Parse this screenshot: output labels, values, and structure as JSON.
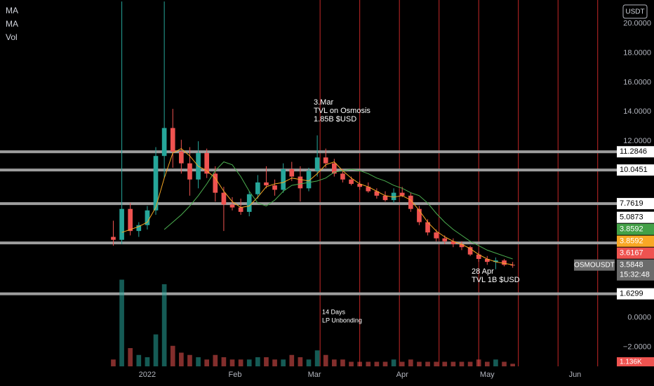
{
  "chart_data": {
    "type": "candlestick",
    "symbol": "OSMOUSDT",
    "currency": "USDT",
    "countdown": "15:32:48",
    "up_color": "#26a69a",
    "down_color": "#ef5350",
    "x": [
      -12,
      -9,
      -6,
      -3,
      0,
      3,
      6,
      9,
      12,
      15,
      18,
      21,
      24,
      27,
      30,
      33,
      36,
      39,
      42,
      45,
      48,
      51,
      54,
      57,
      60,
      63,
      66,
      69,
      72,
      75,
      78,
      81,
      84,
      87,
      90,
      93,
      96,
      99,
      102,
      105,
      108,
      111,
      114,
      117,
      120,
      123,
      126,
      129
    ],
    "open": [
      5.5,
      5.3,
      7.4,
      5.9,
      6.3,
      7.3,
      11.0,
      12.9,
      11.3,
      10.5,
      9.4,
      11.2,
      9.8,
      8.5,
      7.7,
      7.5,
      7.2,
      8.4,
      9.2,
      9.0,
      8.7,
      10.1,
      9.6,
      8.8,
      10.0,
      10.9,
      10.5,
      9.8,
      9.4,
      9.1,
      8.9,
      8.6,
      8.3,
      8.0,
      8.5,
      8.3,
      7.4,
      6.5,
      5.8,
      5.4,
      5.2,
      5.0,
      4.8,
      4.3,
      4.0,
      3.8,
      3.9,
      3.6
    ],
    "high": [
      6.6,
      21.5,
      7.8,
      6.5,
      7.6,
      11.6,
      21.5,
      14.2,
      12.1,
      11.6,
      12.0,
      11.5,
      10.3,
      8.9,
      8.2,
      8.1,
      8.6,
      9.7,
      10.3,
      9.4,
      10.5,
      10.6,
      10.3,
      10.2,
      12.4,
      11.5,
      10.8,
      10.1,
      9.6,
      9.3,
      9.2,
      8.8,
      8.6,
      8.8,
      8.9,
      8.5,
      7.6,
      6.7,
      6.0,
      5.6,
      5.4,
      5.2,
      4.9,
      4.5,
      4.2,
      4.1,
      4.0,
      3.8
    ],
    "low": [
      4.9,
      5.0,
      5.6,
      5.5,
      6.0,
      7.0,
      9.5,
      10.2,
      9.8,
      8.3,
      8.8,
      9.5,
      7.9,
      5.9,
      7.3,
      7.0,
      6.9,
      8.1,
      8.8,
      8.3,
      8.5,
      9.3,
      7.9,
      8.6,
      9.6,
      10.2,
      9.6,
      9.2,
      9.0,
      8.7,
      8.5,
      8.1,
      7.9,
      7.8,
      8.2,
      7.2,
      6.3,
      5.6,
      5.2,
      5.0,
      4.8,
      4.6,
      4.2,
      3.8,
      3.6,
      3.3,
      3.5,
      3.4
    ],
    "close": [
      5.3,
      7.4,
      5.9,
      6.3,
      7.3,
      11.0,
      12.9,
      11.3,
      10.5,
      9.4,
      11.2,
      9.8,
      8.5,
      7.7,
      7.5,
      7.2,
      8.4,
      9.2,
      9.0,
      8.7,
      10.1,
      9.6,
      8.8,
      10.0,
      10.9,
      10.5,
      9.8,
      9.4,
      9.1,
      8.9,
      8.6,
      8.3,
      8.0,
      8.5,
      8.3,
      7.4,
      6.5,
      5.8,
      5.4,
      5.2,
      5.0,
      4.8,
      4.3,
      4.0,
      3.8,
      3.9,
      3.6,
      3.5848
    ],
    "series": [
      {
        "name": "MA",
        "color": "#f5a623",
        "values": [
          null,
          5.8,
          6.0,
          6.2,
          6.5,
          7.5,
          9.5,
          11.2,
          11.5,
          11.0,
          10.3,
          10.0,
          9.5,
          8.6,
          7.9,
          7.5,
          7.6,
          8.2,
          8.9,
          9.1,
          9.2,
          9.5,
          9.4,
          9.3,
          9.8,
          10.4,
          10.6,
          10.0,
          9.5,
          9.1,
          8.9,
          8.6,
          8.3,
          8.2,
          8.3,
          8.0,
          7.3,
          6.5,
          5.9,
          5.5,
          5.2,
          5.0,
          4.7,
          4.3,
          4.0,
          3.8,
          3.7,
          3.6
        ]
      },
      {
        "name": "MA",
        "color": "#4caf50",
        "values": [
          null,
          null,
          null,
          null,
          null,
          null,
          6.0,
          6.5,
          7.0,
          7.6,
          8.3,
          9.1,
          10.0,
          10.6,
          10.4,
          9.6,
          8.6,
          7.8,
          7.6,
          8.0,
          8.6,
          9.0,
          9.1,
          9.2,
          9.3,
          9.5,
          9.9,
          10.0,
          10.1,
          10.0,
          9.8,
          9.5,
          9.3,
          9.0,
          8.8,
          8.5,
          8.3,
          7.8,
          7.1,
          6.5,
          6.0,
          5.6,
          5.2,
          4.9,
          4.6,
          4.4,
          4.2,
          4.0
        ]
      }
    ],
    "volume": {
      "name": "Vol",
      "values": [
        3,
        38,
        8,
        5,
        4,
        14,
        36,
        9,
        6,
        5,
        4,
        3,
        5,
        4,
        3,
        3,
        3,
        4,
        4,
        3,
        3,
        5,
        4,
        3,
        7,
        5,
        3,
        3,
        2,
        2,
        2,
        2,
        2,
        3,
        2,
        3,
        2,
        2,
        2,
        2,
        2,
        2,
        2,
        3,
        2,
        3,
        2,
        1.136
      ],
      "ylim": [
        0,
        40
      ],
      "last_label": "1.136K"
    },
    "xlim": [
      -52,
      166
    ],
    "xticks": [
      {
        "value": 0,
        "label": "2022"
      },
      {
        "value": 31,
        "label": "Feb"
      },
      {
        "value": 59,
        "label": "Mar"
      },
      {
        "value": 90,
        "label": "Apr"
      },
      {
        "value": 120,
        "label": "May"
      },
      {
        "value": 151,
        "label": "Jun"
      }
    ],
    "ylim": [
      -3.3,
      21.6
    ],
    "yticks": [
      {
        "value": 20,
        "label": "20.0000"
      },
      {
        "value": 18,
        "label": "18.0000"
      },
      {
        "value": 16,
        "label": "16.0000"
      },
      {
        "value": 14,
        "label": "14.0000"
      },
      {
        "value": 12,
        "label": "12.0000"
      },
      {
        "value": 0,
        "label": "0.0000"
      },
      {
        "value": -2,
        "label": "−2.0000"
      }
    ],
    "levels": [
      11.2846,
      10.0451,
      7.7619,
      5.0873,
      1.6299
    ],
    "level_color": "#9e9e9e",
    "markers": [
      61,
      75,
      89,
      103,
      117,
      131,
      145,
      159
    ],
    "marker_color": "#c62828",
    "price_labels": [
      {
        "value": 11.2846,
        "color": "#ffffff"
      },
      {
        "value": 10.0451,
        "color": "#ffffff"
      },
      {
        "value": 7.7619,
        "color": "#ffffff"
      },
      {
        "value": 5.0873,
        "color": "#ffffff"
      },
      {
        "value": 3.8592,
        "color": "#43a047"
      },
      {
        "value": 3.8592,
        "color": "#f9a825"
      },
      {
        "value": 3.6167,
        "color": "#ef5350"
      },
      {
        "value": 3.5848,
        "color": "#6b6b6b"
      },
      {
        "value": 1.6299,
        "color": "#ffffff"
      }
    ],
    "annotations": [
      {
        "lines": [
          "3.Mar",
          "TVL on Osmosis",
          "1.85B $USD"
        ]
      },
      {
        "lines": [
          "28 Apr",
          "TVL 1B $USD"
        ]
      },
      {
        "lines": [
          "14 Days",
          "LP Unbonding"
        ]
      }
    ]
  }
}
